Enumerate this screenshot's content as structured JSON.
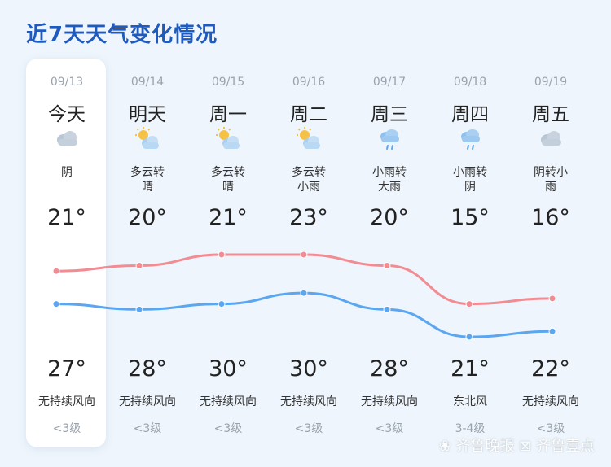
{
  "title": "近7天天气变化情况",
  "days": [
    {
      "date": "09/13",
      "day": "今天",
      "icon": "cloudy-icon",
      "cond": [
        "阴"
      ],
      "high": "21°",
      "low": "27°",
      "wind": "无持续风向",
      "level": "<3级"
    },
    {
      "date": "09/14",
      "day": "明天",
      "icon": "partly-cloudy-icon",
      "cond": [
        "多云转",
        "晴"
      ],
      "high": "20°",
      "low": "28°",
      "wind": "无持续风向",
      "level": "<3级"
    },
    {
      "date": "09/15",
      "day": "周一",
      "icon": "partly-cloudy-icon",
      "cond": [
        "多云转",
        "晴"
      ],
      "high": "21°",
      "low": "30°",
      "wind": "无持续风向",
      "level": "<3级"
    },
    {
      "date": "09/16",
      "day": "周二",
      "icon": "partly-cloudy-icon",
      "cond": [
        "多云转",
        "小雨"
      ],
      "high": "23°",
      "low": "30°",
      "wind": "无持续风向",
      "level": "<3级"
    },
    {
      "date": "09/17",
      "day": "周三",
      "icon": "rain-icon",
      "cond": [
        "小雨转",
        "大雨"
      ],
      "high": "20°",
      "low": "28°",
      "wind": "无持续风向",
      "level": "<3级"
    },
    {
      "date": "09/18",
      "day": "周四",
      "icon": "rain-icon",
      "cond": [
        "小雨转",
        "阴"
      ],
      "high": "15°",
      "low": "21°",
      "wind": "东北风",
      "level": "3-4级"
    },
    {
      "date": "09/19",
      "day": "周五",
      "icon": "cloudy-icon",
      "cond": [
        "阴转小",
        "雨"
      ],
      "high": "16°",
      "low": "22°",
      "wind": "无持续风向",
      "level": "<3级"
    }
  ],
  "chart_data": {
    "type": "line",
    "categories": [
      "09/13",
      "09/14",
      "09/15",
      "09/16",
      "09/17",
      "09/18",
      "09/19"
    ],
    "series": [
      {
        "values": [
          21,
          20,
          21,
          23,
          20,
          15,
          16
        ],
        "color": "#5aa6f0"
      },
      {
        "values": [
          27,
          28,
          30,
          30,
          28,
          21,
          22
        ],
        "color": "#f28b92"
      }
    ]
  },
  "watermark": "齐鲁晚报 齐鲁壹点"
}
